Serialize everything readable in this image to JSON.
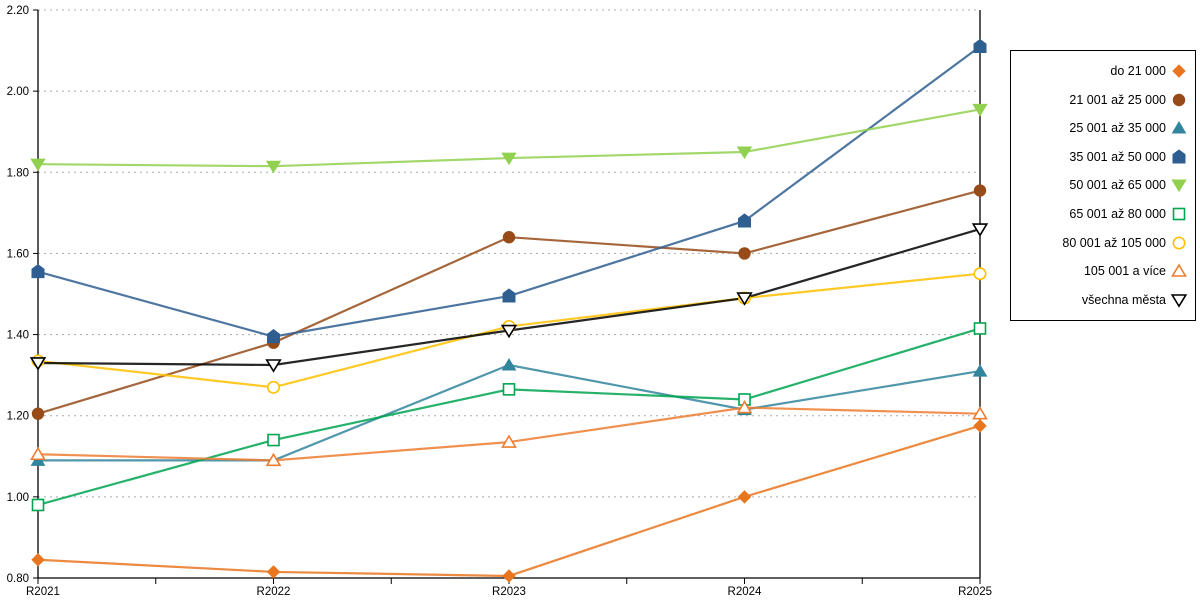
{
  "chart_data": {
    "type": "line",
    "title": "",
    "xlabel": "",
    "ylabel": "",
    "categories": [
      "R2021",
      "R2022",
      "R2023",
      "R2024",
      "R2025"
    ],
    "series": [
      {
        "name": "do 21 000",
        "color": "#E8761F",
        "marker": "diamond",
        "fill": "filled",
        "values": [
          0.845,
          0.815,
          0.805,
          1.0,
          1.175
        ]
      },
      {
        "name": "21 001 až 25 000",
        "color": "#964B19",
        "marker": "circle",
        "fill": "filled",
        "values": [
          1.205,
          1.38,
          1.64,
          1.6,
          1.755
        ]
      },
      {
        "name": "25 001 až 35 000",
        "color": "#31859C",
        "marker": "triangle-up",
        "fill": "filled",
        "values": [
          1.09,
          1.09,
          1.325,
          1.215,
          1.31
        ]
      },
      {
        "name": "35 001 až 50 000",
        "color": "#2F5E91",
        "marker": "pentagon",
        "fill": "filled",
        "values": [
          1.555,
          1.395,
          1.495,
          1.68,
          2.11
        ]
      },
      {
        "name": "50 001 až 65 000",
        "color": "#92D050",
        "marker": "triangle-down",
        "fill": "filled",
        "values": [
          1.82,
          1.815,
          1.835,
          1.85,
          1.955
        ]
      },
      {
        "name": "65 001 až 80 000",
        "color": "#00A550",
        "marker": "square",
        "fill": "hollow",
        "values": [
          0.98,
          1.14,
          1.265,
          1.24,
          1.415
        ]
      },
      {
        "name": "80 001 až 105 000",
        "color": "#FFC000",
        "marker": "circle",
        "fill": "hollow",
        "values": [
          1.335,
          1.27,
          1.42,
          1.49,
          1.55
        ]
      },
      {
        "name": "105 001 a více",
        "color": "#ED7D31",
        "marker": "triangle-up",
        "fill": "hollow",
        "values": [
          1.105,
          1.09,
          1.135,
          1.22,
          1.205
        ]
      },
      {
        "name": "všechna města",
        "color": "#000000",
        "marker": "triangle-down",
        "fill": "hollow",
        "values": [
          1.33,
          1.325,
          1.41,
          1.49,
          1.66
        ]
      }
    ],
    "ylim": [
      0.8,
      2.2
    ],
    "ytick_step": 0.2,
    "ytick_labels": [
      "0.80",
      "1.00",
      "1.20",
      "1.40",
      "1.60",
      "1.80",
      "2.00",
      "2.20"
    ],
    "grid": "horizontal-dotted",
    "grid_color": "#ababab",
    "axis_color": "#000000",
    "legend_position": "right"
  }
}
